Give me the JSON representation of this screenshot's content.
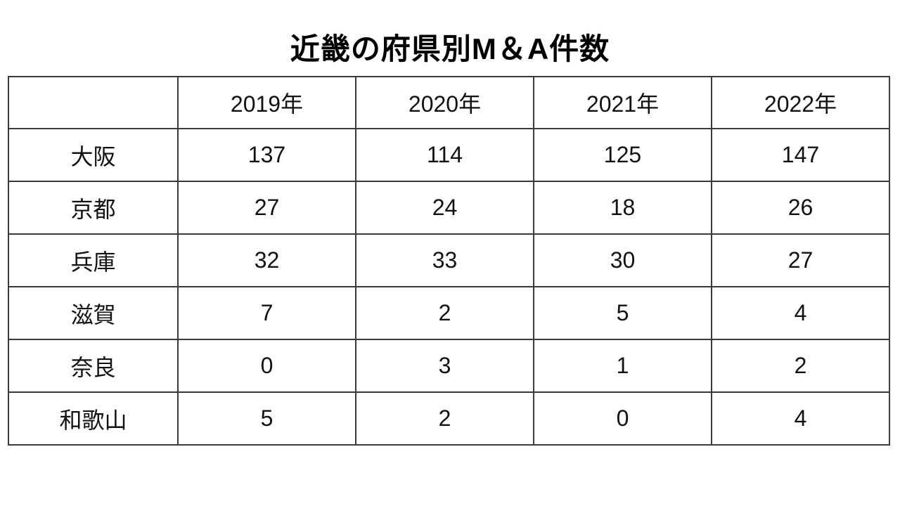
{
  "page": {
    "background": "#ffffff",
    "border_color": "#3a3a3a",
    "text_color": "#111111"
  },
  "title": "近畿の府県別M＆A件数",
  "table": {
    "header": [
      "",
      "2019年",
      "2020年",
      "2021年",
      "2022年"
    ]
  },
  "chart_data": {
    "type": "table",
    "title": "近畿の府県別M＆A件数",
    "categories": [
      "2019年",
      "2020年",
      "2021年",
      "2022年"
    ],
    "row_header_label": "",
    "series": [
      {
        "name": "大阪",
        "values": [
          137,
          114,
          125,
          147
        ]
      },
      {
        "name": "京都",
        "values": [
          27,
          24,
          18,
          26
        ]
      },
      {
        "name": "兵庫",
        "values": [
          32,
          33,
          30,
          27
        ]
      },
      {
        "name": "滋賀",
        "values": [
          7,
          2,
          5,
          4
        ]
      },
      {
        "name": "奈良",
        "values": [
          0,
          3,
          1,
          2
        ]
      },
      {
        "name": "和歌山",
        "values": [
          5,
          2,
          0,
          4
        ]
      }
    ]
  }
}
